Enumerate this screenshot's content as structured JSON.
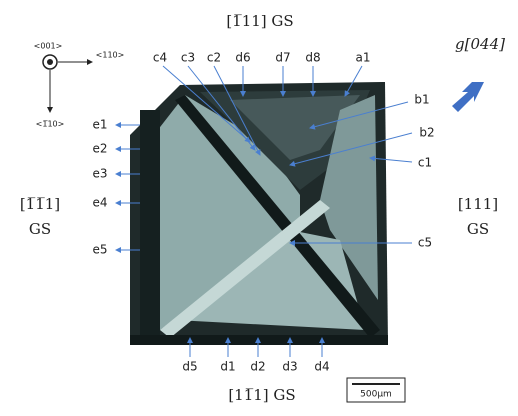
{
  "header": {
    "top": "[1̅11] GS",
    "bottom": "[11̅1] GS",
    "left": [
      "[1̅1̅1]",
      "GS"
    ],
    "right": [
      "[111]",
      "GS"
    ],
    "beam": "g[044]"
  },
  "axes": {
    "z": "<001>",
    "x": "<110>",
    "y": "<1̅10>"
  },
  "labels": [
    "c4",
    "c3",
    "c2",
    "d6",
    "d7",
    "d8",
    "a1",
    "b1",
    "b2",
    "c1",
    "c5",
    "e1",
    "e2",
    "e3",
    "e4",
    "e5",
    "d5",
    "d1",
    "d2",
    "d3",
    "d4"
  ],
  "scale_bar": "500μm"
}
